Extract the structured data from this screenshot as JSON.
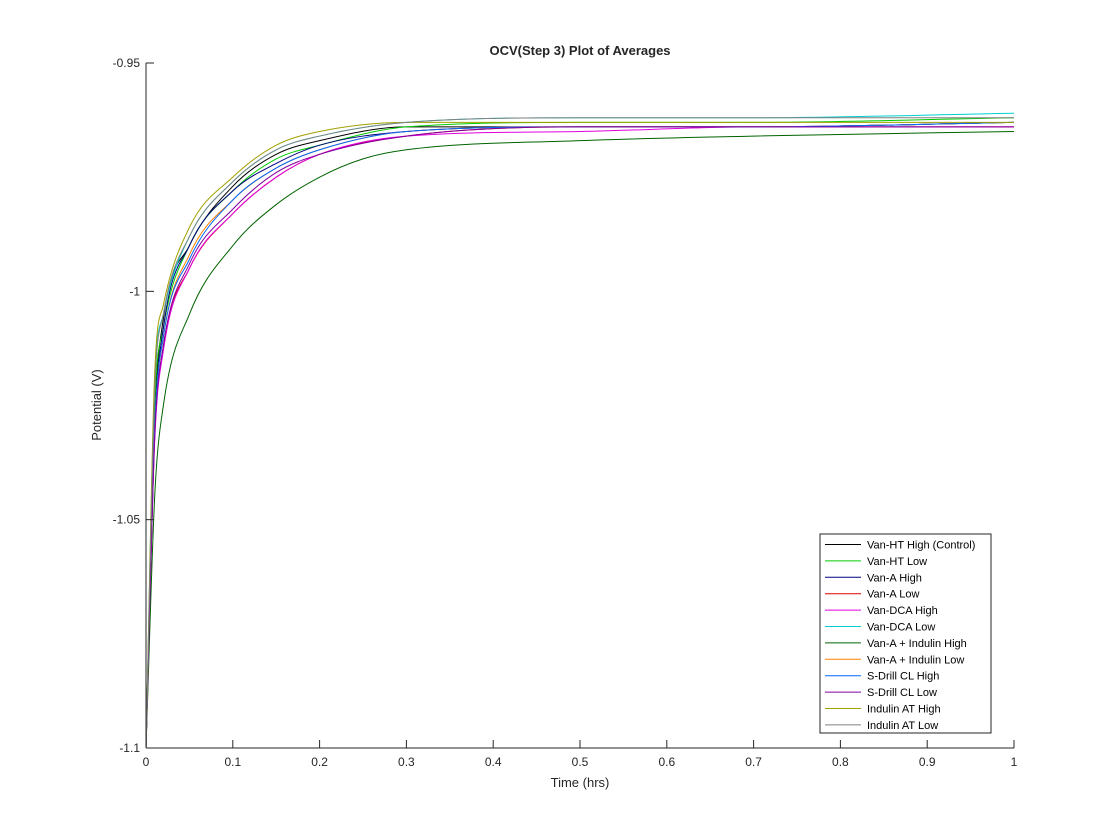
{
  "chart_data": {
    "type": "line",
    "title": "OCV(Step 3) Plot of Averages",
    "xlabel": "Time (hrs)",
    "ylabel": "Potential (V)",
    "xlim": [
      0,
      1
    ],
    "ylim": [
      -1.1,
      -0.95
    ],
    "xticks": [
      0,
      0.1,
      0.2,
      0.3,
      0.4,
      0.5,
      0.6,
      0.7,
      0.8,
      0.9,
      1
    ],
    "xtick_labels": [
      "0",
      "0.1",
      "0.2",
      "0.3",
      "0.4",
      "0.5",
      "0.6",
      "0.7",
      "0.8",
      "0.9",
      "1"
    ],
    "yticks": [
      -1.1,
      -1.05,
      -1,
      -0.95
    ],
    "ytick_labels": [
      "-1.1",
      "-1.05",
      "-1",
      "-0.95"
    ],
    "grid": false,
    "legend_position": "bottom-right",
    "series": [
      {
        "name": "Van-HT High (Control)",
        "color": "#000000",
        "x": [
          0,
          0.01,
          0.02,
          0.05,
          0.1,
          0.15,
          0.2,
          0.3,
          0.5,
          0.7,
          1.0
        ],
        "y": [
          -1.1,
          -1.028,
          -1.006,
          -0.99,
          -0.977,
          -0.97,
          -0.967,
          -0.964,
          -0.964,
          -0.964,
          -0.963
        ]
      },
      {
        "name": "Van-HT Low",
        "color": "#00cc00",
        "x": [
          0,
          0.01,
          0.02,
          0.05,
          0.1,
          0.15,
          0.2,
          0.3,
          0.5,
          0.7,
          1.0
        ],
        "y": [
          -1.1,
          -1.025,
          -1.008,
          -0.99,
          -0.978,
          -0.971,
          -0.968,
          -0.964,
          -0.963,
          -0.963,
          -0.962
        ]
      },
      {
        "name": "Van-A High",
        "color": "#000080",
        "x": [
          0,
          0.01,
          0.02,
          0.05,
          0.1,
          0.15,
          0.2,
          0.3,
          0.5,
          0.7,
          1.0
        ],
        "y": [
          -1.1,
          -1.03,
          -1.008,
          -0.99,
          -0.978,
          -0.972,
          -0.968,
          -0.965,
          -0.964,
          -0.964,
          -0.963
        ]
      },
      {
        "name": "Van-A Low",
        "color": "#e00000",
        "x": [
          0,
          0.01,
          0.02,
          0.05,
          0.1,
          0.15,
          0.2,
          0.3,
          0.5,
          0.7,
          1.0
        ],
        "y": [
          -1.1,
          -1.032,
          -1.012,
          -0.995,
          -0.983,
          -0.975,
          -0.97,
          -0.966,
          -0.964,
          -0.964,
          -0.964
        ]
      },
      {
        "name": "Van-DCA High",
        "color": "#e000e0",
        "x": [
          0,
          0.01,
          0.02,
          0.05,
          0.1,
          0.15,
          0.2,
          0.3,
          0.5,
          0.7,
          1.0
        ],
        "y": [
          -1.1,
          -1.033,
          -1.013,
          -0.995,
          -0.983,
          -0.975,
          -0.97,
          -0.966,
          -0.965,
          -0.964,
          -0.964
        ]
      },
      {
        "name": "Van-DCA Low",
        "color": "#00d0d0",
        "x": [
          0,
          0.01,
          0.02,
          0.05,
          0.1,
          0.15,
          0.2,
          0.3,
          0.5,
          0.7,
          1.0
        ],
        "y": [
          -1.1,
          -1.02,
          -1.005,
          -0.988,
          -0.976,
          -0.969,
          -0.966,
          -0.963,
          -0.962,
          -0.962,
          -0.961
        ]
      },
      {
        "name": "Van-A + Indulin High",
        "color": "#006400",
        "x": [
          0,
          0.01,
          0.02,
          0.05,
          0.1,
          0.15,
          0.2,
          0.25,
          0.3,
          0.5,
          0.7,
          1.0
        ],
        "y": [
          -1.1,
          -1.045,
          -1.025,
          -1.005,
          -0.99,
          -0.981,
          -0.975,
          -0.971,
          -0.969,
          -0.967,
          -0.966,
          -0.965
        ]
      },
      {
        "name": "Van-A + Indulin Low",
        "color": "#ff8000",
        "x": [
          0,
          0.01,
          0.02,
          0.05,
          0.1,
          0.15,
          0.2,
          0.3,
          0.5,
          0.7,
          1.0
        ],
        "y": [
          -1.1,
          -1.03,
          -1.01,
          -0.992,
          -0.98,
          -0.973,
          -0.969,
          -0.965,
          -0.964,
          -0.964,
          -0.963
        ]
      },
      {
        "name": "S-Drill CL High",
        "color": "#0066ff",
        "x": [
          0,
          0.01,
          0.02,
          0.05,
          0.1,
          0.15,
          0.2,
          0.3,
          0.5,
          0.7,
          1.0
        ],
        "y": [
          -1.1,
          -1.03,
          -1.01,
          -0.993,
          -0.98,
          -0.973,
          -0.969,
          -0.965,
          -0.964,
          -0.964,
          -0.963
        ]
      },
      {
        "name": "S-Drill CL Low",
        "color": "#8000a0",
        "x": [
          0,
          0.01,
          0.02,
          0.05,
          0.1,
          0.15,
          0.2,
          0.3,
          0.5,
          0.7,
          1.0
        ],
        "y": [
          -1.1,
          -1.032,
          -1.012,
          -0.994,
          -0.982,
          -0.974,
          -0.97,
          -0.966,
          -0.964,
          -0.964,
          -0.964
        ]
      },
      {
        "name": "Indulin AT High",
        "color": "#a0a000",
        "x": [
          0,
          0.01,
          0.02,
          0.05,
          0.1,
          0.15,
          0.2,
          0.3,
          0.5,
          0.7,
          1.0
        ],
        "y": [
          -1.1,
          -1.018,
          -1.003,
          -0.986,
          -0.975,
          -0.968,
          -0.965,
          -0.963,
          -0.963,
          -0.963,
          -0.963
        ]
      },
      {
        "name": "Indulin AT Low",
        "color": "#808080",
        "x": [
          0,
          0.01,
          0.02,
          0.05,
          0.1,
          0.15,
          0.2,
          0.3,
          0.5,
          0.7,
          1.0
        ],
        "y": [
          -1.1,
          -1.022,
          -1.005,
          -0.988,
          -0.976,
          -0.969,
          -0.966,
          -0.963,
          -0.962,
          -0.962,
          -0.962
        ]
      }
    ]
  }
}
